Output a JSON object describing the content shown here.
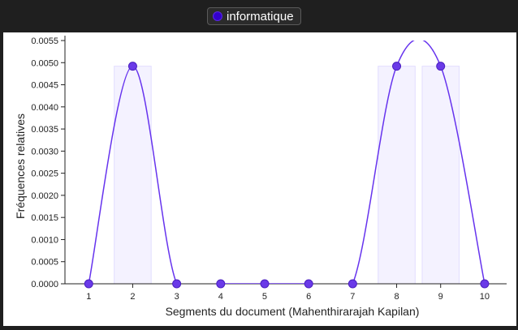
{
  "legend": {
    "label": "informatique",
    "color": "#3300cc"
  },
  "chart_data": {
    "type": "line",
    "title": "",
    "xlabel": "Segments du document (Mahenthirarajah Kapilan)",
    "ylabel": "Fréquences relatives",
    "x": [
      1,
      2,
      3,
      4,
      5,
      6,
      7,
      8,
      9,
      10
    ],
    "series": [
      {
        "name": "informatique",
        "values": [
          0,
          0.00492,
          0,
          0,
          0,
          0,
          0,
          0.00492,
          0.00492,
          0
        ]
      }
    ],
    "bars": [
      0,
      0.00492,
      0,
      0,
      0,
      0,
      0,
      0.00492,
      0.00492,
      0
    ],
    "ylim": [
      0,
      0.0055
    ],
    "yticks": [
      "0.0000",
      "0.0005",
      "0.0010",
      "0.0015",
      "0.0020",
      "0.0025",
      "0.0030",
      "0.0035",
      "0.0040",
      "0.0045",
      "0.0050",
      "0.0055"
    ],
    "xticks": [
      "1",
      "2",
      "3",
      "4",
      "5",
      "6",
      "7",
      "8",
      "9",
      "10"
    ],
    "grid": false,
    "legend_position": "top-center",
    "line_color": "#6633ee",
    "point_color": "#6a3ae8",
    "bar_color": "#f4f2ff"
  }
}
